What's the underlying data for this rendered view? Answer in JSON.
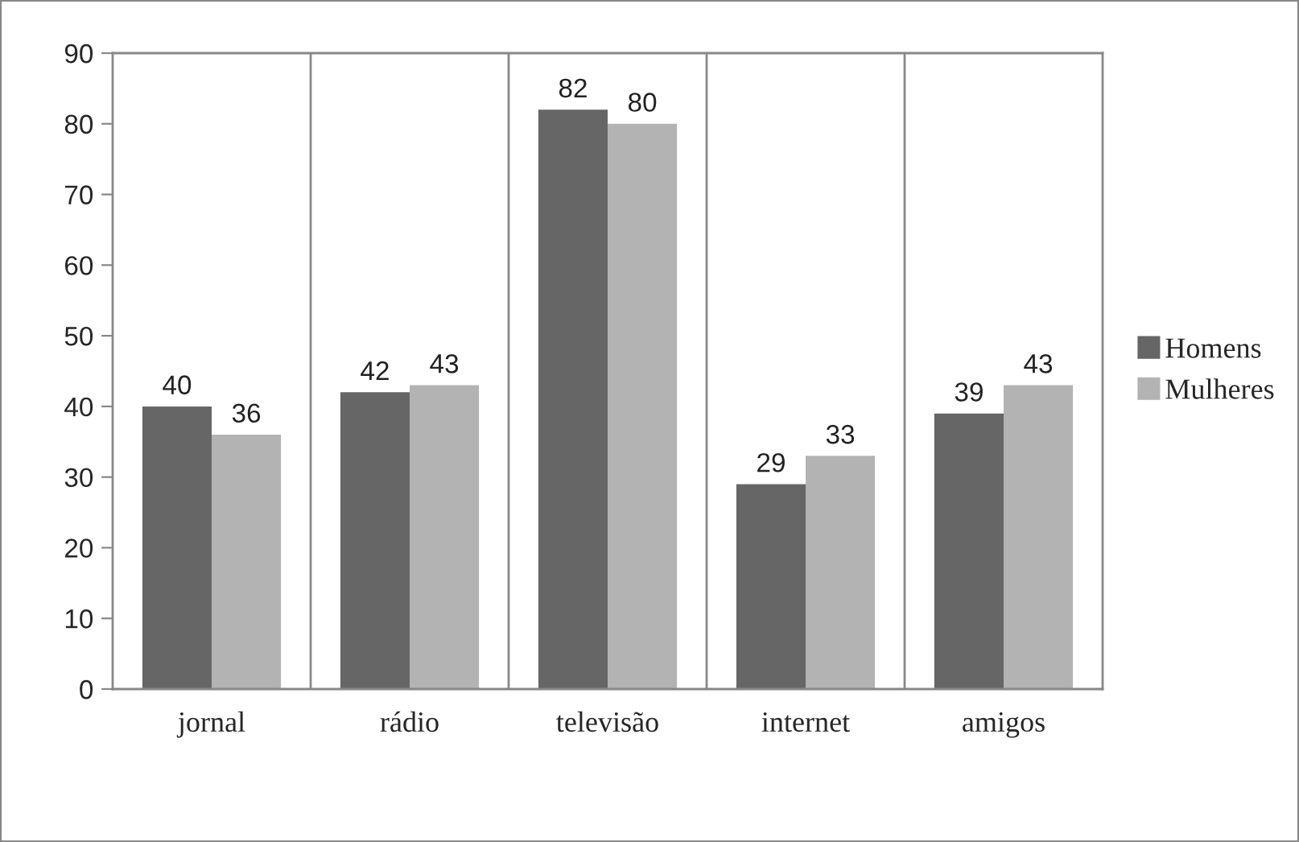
{
  "chart_data": {
    "type": "bar",
    "categories": [
      "jornal",
      "rádio",
      "televisão",
      "internet",
      "amigos"
    ],
    "series": [
      {
        "name": "Homens",
        "color": "#666666",
        "values": [
          40,
          42,
          82,
          29,
          39
        ]
      },
      {
        "name": "Mulheres",
        "color": "#b3b3b3",
        "values": [
          36,
          43,
          80,
          33,
          43
        ]
      }
    ],
    "ylim": [
      0,
      90
    ],
    "yticks": [
      0,
      10,
      20,
      30,
      40,
      50,
      60,
      70,
      80,
      90
    ],
    "grid": "x",
    "legend": "right",
    "data_labels": true
  }
}
